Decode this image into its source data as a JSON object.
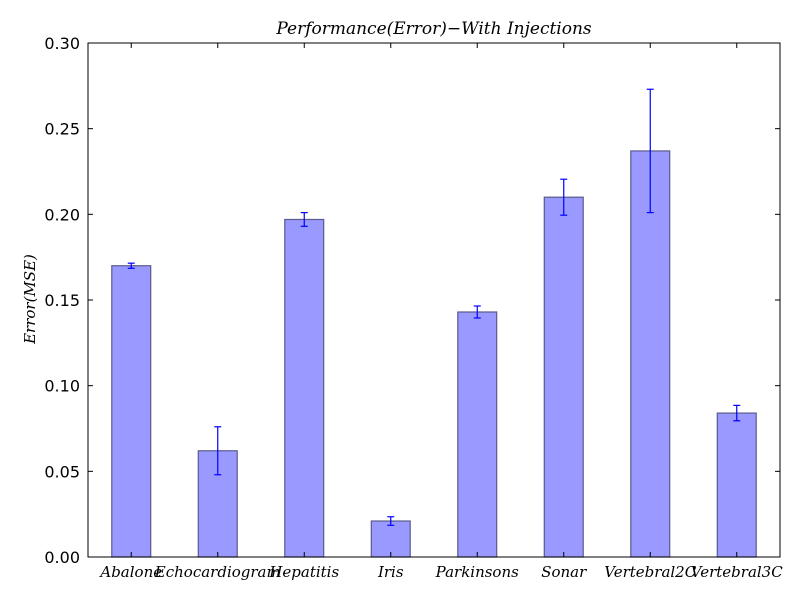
{
  "chart_data": {
    "type": "bar",
    "title": "Performance(Error)−With Injections",
    "xlabel": "",
    "ylabel": "Error(MSE)",
    "categories": [
      "Abalone",
      "Echocardiogram",
      "Hepatitis",
      "Iris",
      "Parkinsons",
      "Sonar",
      "Vertebral2C",
      "Vertebral3C"
    ],
    "values": [
      0.17,
      0.062,
      0.197,
      0.021,
      0.143,
      0.21,
      0.237,
      0.084
    ],
    "error": [
      0.0015,
      0.014,
      0.004,
      0.0025,
      0.0035,
      0.0105,
      0.036,
      0.0045
    ],
    "ylim": [
      0,
      0.3
    ],
    "yticks": [
      "0.00",
      "0.05",
      "0.10",
      "0.15",
      "0.20",
      "0.25",
      "0.30"
    ],
    "grid": false,
    "colors": {
      "bar_fill": "#9999ff",
      "bar_edge": "#5a5a8c",
      "error_bar": "#0000ff"
    }
  }
}
